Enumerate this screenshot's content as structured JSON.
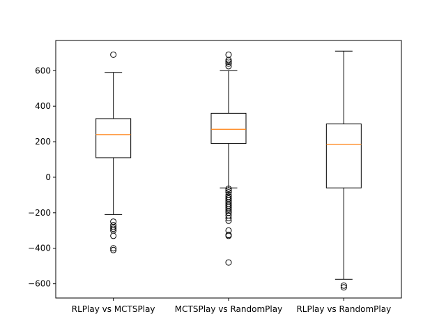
{
  "chart_data": {
    "type": "boxplot",
    "title": "",
    "xlabel": "",
    "ylabel": "",
    "ylim": [
      -680,
      770
    ],
    "yticks": [
      -600,
      -400,
      -200,
      0,
      200,
      400,
      600
    ],
    "ytick_labels": [
      "−600",
      "−400",
      "−200",
      "0",
      "200",
      "400",
      "600"
    ],
    "grid": false,
    "legend": "none",
    "colors": {
      "box": "#000000",
      "median": "#ff7f0e",
      "background": "#ffffff"
    },
    "categories": [
      "RLPlay vs MCTSPlay",
      "MCTSPlay vs RandomPlay",
      "RLPlay vs RandomPlay"
    ],
    "boxes": [
      {
        "category": "RLPlay vs MCTSPlay",
        "whisker_low": -210,
        "q1": 110,
        "median": 240,
        "q3": 330,
        "whisker_high": 590,
        "outliers": [
          690,
          -250,
          -270,
          -280,
          -290,
          -300,
          -330,
          -400,
          -410
        ]
      },
      {
        "category": "MCTSPlay vs RandomPlay",
        "whisker_low": -60,
        "q1": 190,
        "median": 270,
        "q3": 360,
        "whisker_high": 600,
        "outliers": [
          690,
          660,
          650,
          640,
          625,
          -65,
          -75,
          -85,
          -100,
          -110,
          -120,
          -130,
          -140,
          -150,
          -160,
          -170,
          -180,
          -190,
          -200,
          -215,
          -230,
          -245,
          -300,
          -325,
          -330,
          -480
        ]
      },
      {
        "category": "RLPlay vs RandomPlay",
        "whisker_low": -575,
        "q1": -60,
        "median": 185,
        "q3": 300,
        "whisker_high": 710,
        "outliers": [
          -610,
          -620
        ]
      }
    ]
  }
}
